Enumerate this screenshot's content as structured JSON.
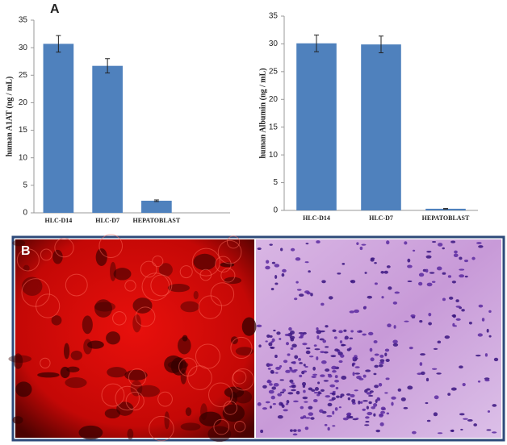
{
  "panel_labels": [
    "A",
    "B"
  ],
  "chart_data": [
    {
      "type": "bar",
      "y_label": "human A1AT (ng / mL)",
      "categories": [
        "HLC-D14",
        "HLC-D7",
        "HEPATOBLAST",
        null
      ],
      "values": [
        30.7,
        26.7,
        2.2,
        null
      ],
      "errors": [
        1.5,
        1.3,
        0.15,
        null
      ],
      "color": "#4f81bd",
      "ylim": [
        0,
        35
      ],
      "yticks": [
        0,
        5,
        10,
        15,
        20,
        25,
        30,
        35
      ]
    },
    {
      "type": "bar",
      "y_label": "human Albumin (ng / mL)",
      "categories": [
        "HLC-D14",
        "HLC-D7",
        "HEPATOBLAST"
      ],
      "values": [
        30.1,
        29.9,
        0.3
      ],
      "errors": [
        1.5,
        1.5,
        0.05
      ],
      "color": "#4f81bd",
      "ylim": [
        0,
        35
      ],
      "yticks": [
        0,
        5,
        10,
        15,
        20,
        25,
        30,
        35
      ]
    }
  ]
}
